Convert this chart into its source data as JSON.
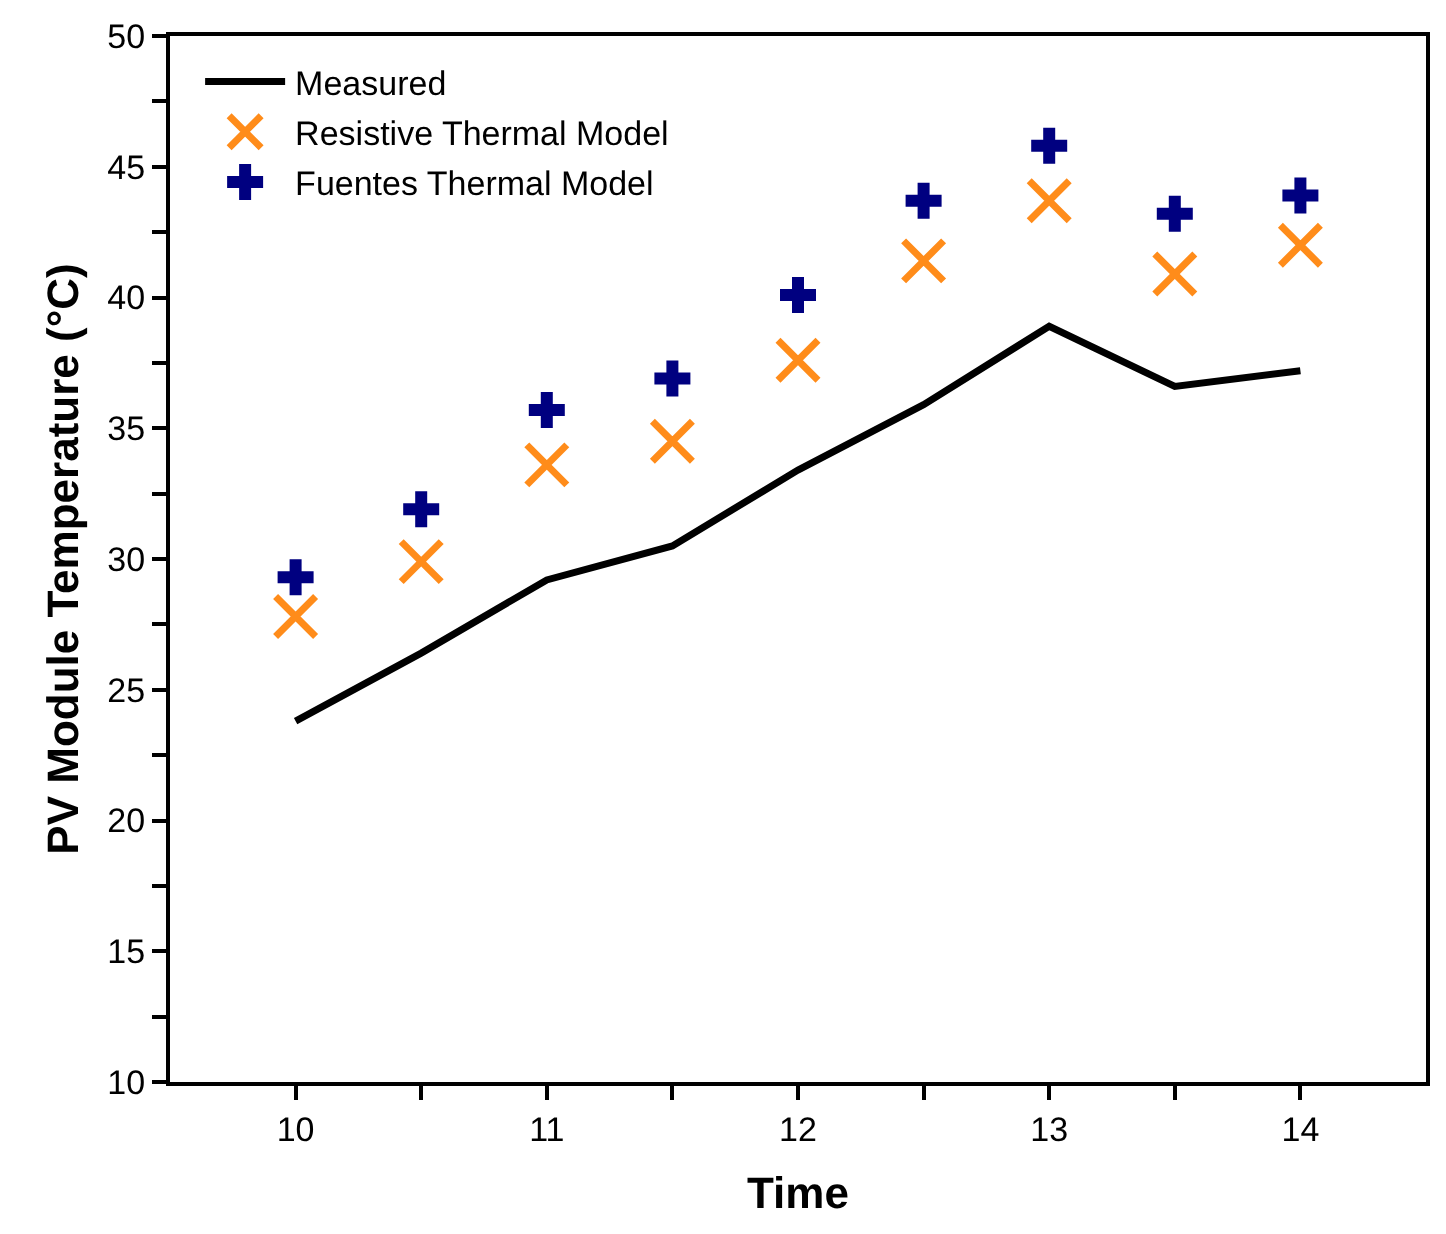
{
  "chart_data": {
    "type": "line",
    "xlabel": "Time",
    "ylabel": "PV Module Temperature (°C)",
    "x": [
      10,
      10.5,
      11,
      11.5,
      12,
      12.5,
      13,
      13.5,
      14
    ],
    "series": [
      {
        "name": "Measured",
        "color": "#000000",
        "marker": "none",
        "line_style": "solid",
        "values": [
          23.8,
          26.4,
          29.2,
          30.5,
          33.4,
          35.9,
          38.9,
          36.6,
          37.2
        ]
      },
      {
        "name": "Resistive Thermal Model",
        "type": "scatter",
        "color": "#ff8c1a",
        "marker": "x",
        "values": [
          27.8,
          29.9,
          33.6,
          34.5,
          37.6,
          41.4,
          43.7,
          40.9,
          42.0
        ]
      },
      {
        "name": "Fuentes Thermal Model",
        "type": "scatter",
        "color": "#000080",
        "marker": "cross",
        "values": [
          29.3,
          31.9,
          35.7,
          36.9,
          40.1,
          43.7,
          45.8,
          43.2,
          43.9
        ]
      }
    ],
    "xlim": [
      9.5,
      14.5
    ],
    "xticks": [
      10,
      {
        "value": 10.5,
        "label": null
      },
      11,
      {
        "value": 11.5,
        "label": null
      },
      12,
      {
        "value": 12.5,
        "label": null
      },
      13,
      {
        "value": 13.5,
        "label": null
      },
      14
    ],
    "ylim": [
      10,
      50
    ],
    "yticks": [
      10,
      {
        "value": 12.5,
        "label": null
      },
      15,
      {
        "value": 17.5,
        "label": null
      },
      20,
      {
        "value": 22.5,
        "label": null
      },
      25,
      {
        "value": 27.5,
        "label": null
      },
      30,
      {
        "value": 32.5,
        "label": null
      },
      35,
      {
        "value": 37.5,
        "label": null
      },
      40,
      {
        "value": 42.5,
        "label": null
      },
      45,
      {
        "value": 47.5,
        "label": null
      },
      50
    ],
    "legend": "top left"
  }
}
